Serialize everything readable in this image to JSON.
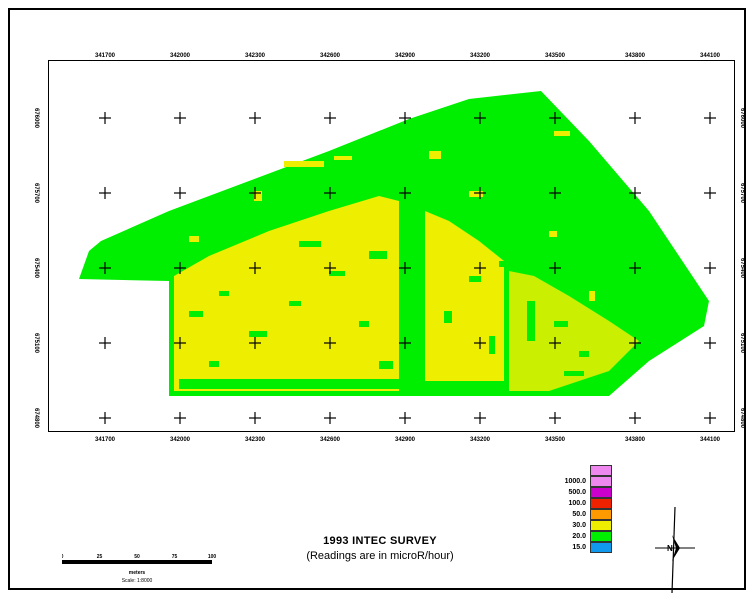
{
  "map": {
    "title": "1993 INTEC SURVEY",
    "subtitle": "(Readings are in microR/hour)",
    "top_ticks": [
      "341700",
      "342000",
      "342300",
      "342600",
      "342900",
      "343200",
      "343500",
      "343800",
      "344100"
    ],
    "bottom_ticks": [
      "341700",
      "342000",
      "342300",
      "342600",
      "342900",
      "343200",
      "343500",
      "343800",
      "344100"
    ],
    "left_ticks": [
      "676000",
      "675700",
      "675400",
      "675100",
      "674800"
    ],
    "right_ticks": [
      "676000",
      "675700",
      "675400",
      "675100",
      "674800"
    ],
    "colors": {
      "green": "#00ee00",
      "yellow": "#eeee00"
    }
  },
  "legend": {
    "items": [
      {
        "label": "",
        "color": "#ee88ee"
      },
      {
        "label": "1000.0",
        "color": "#ee88ee"
      },
      {
        "label": "500.0",
        "color": "#cc00cc"
      },
      {
        "label": "100.0",
        "color": "#ee2200"
      },
      {
        "label": "50.0",
        "color": "#ff9900"
      },
      {
        "label": "30.0",
        "color": "#eeee00"
      },
      {
        "label": "20.0",
        "color": "#00ee00"
      },
      {
        "label": "15.0",
        "color": "#1199ee"
      }
    ]
  },
  "scale": {
    "labels": [
      "0",
      "25",
      "50",
      "75",
      "100"
    ],
    "unit": "meters",
    "caption": "Scale: 1:8000"
  },
  "north": {
    "label": "N"
  }
}
